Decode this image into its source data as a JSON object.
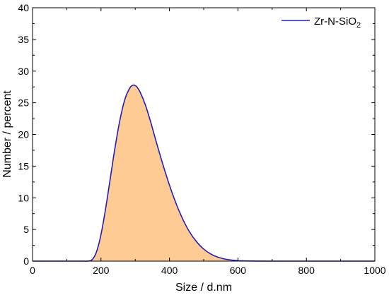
{
  "chart_data": {
    "type": "area",
    "xlabel": "Size / d.nm",
    "ylabel": "Number / percent",
    "xlim": [
      0,
      1000
    ],
    "ylim": [
      0,
      40
    ],
    "xticks": [
      0,
      200,
      400,
      600,
      800,
      1000
    ],
    "yticks": [
      0,
      5,
      10,
      15,
      20,
      25,
      30,
      35,
      40
    ],
    "grid": false,
    "legend_position": "top-right",
    "series": [
      {
        "name": "Zr-N-SiO₂",
        "legend": {
          "base": "Zr-N-SiO",
          "subscript": "2"
        },
        "line_color": "#1f1fbf",
        "fill_color": "#fdcb93",
        "x": [
          0,
          100,
          160,
          175,
          185,
          195,
          205,
          215,
          225,
          240,
          255,
          270,
          285,
          295,
          300,
          305,
          315,
          330,
          345,
          360,
          380,
          400,
          420,
          440,
          460,
          480,
          500,
          520,
          540,
          560,
          580,
          600,
          620,
          650,
          700,
          800,
          900,
          1000
        ],
        "y": [
          0,
          0,
          0,
          0.3,
          1.2,
          3.0,
          5.6,
          8.8,
          12.3,
          17.6,
          22.2,
          25.6,
          27.4,
          27.8,
          27.7,
          27.5,
          26.6,
          24.6,
          22.0,
          19.1,
          15.4,
          12.0,
          9.0,
          6.5,
          4.5,
          3.0,
          1.9,
          1.15,
          0.65,
          0.35,
          0.18,
          0.08,
          0.03,
          0.01,
          0,
          0,
          0,
          0
        ]
      }
    ]
  }
}
